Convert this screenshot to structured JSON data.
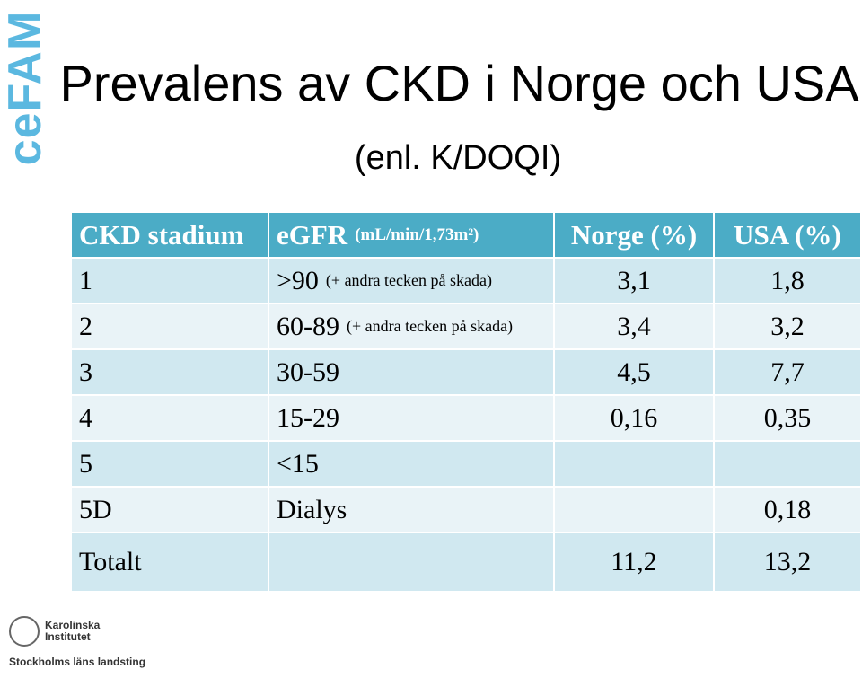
{
  "logo": "ceFAM",
  "title": {
    "main": "Prevalens av CKD i Norge och USA",
    "sub": "(enl. K/DOQI)"
  },
  "table": {
    "header": {
      "stage": "CKD stadium",
      "egfr": "eGFR",
      "unit": "(mL/min/1,73m²)",
      "norge": "Norge (%)",
      "usa": "USA (%)"
    },
    "rows": [
      {
        "stage": "1",
        "egfr": ">90",
        "note": "(+ andra tecken på skada)",
        "norge": "3,1",
        "usa": "1,8"
      },
      {
        "stage": "2",
        "egfr": "60-89",
        "note": "(+ andra tecken på skada)",
        "norge": "3,4",
        "usa": "3,2"
      },
      {
        "stage": "3",
        "egfr": "30-59",
        "norge": "4,5",
        "usa": "7,7"
      },
      {
        "stage": "4",
        "egfr": "15-29",
        "norge": "0,16",
        "usa": "0,35"
      },
      {
        "stage": "5",
        "egfr": "<15"
      },
      {
        "stage": "5D",
        "egfr": "Dialys",
        "usa": "0,18"
      },
      {
        "stage": "Totalt",
        "norge": "11,2",
        "usa": "13,2"
      }
    ]
  },
  "footer": {
    "ki": "Karolinska Institutet",
    "sll": "Stockholms läns landsting"
  }
}
